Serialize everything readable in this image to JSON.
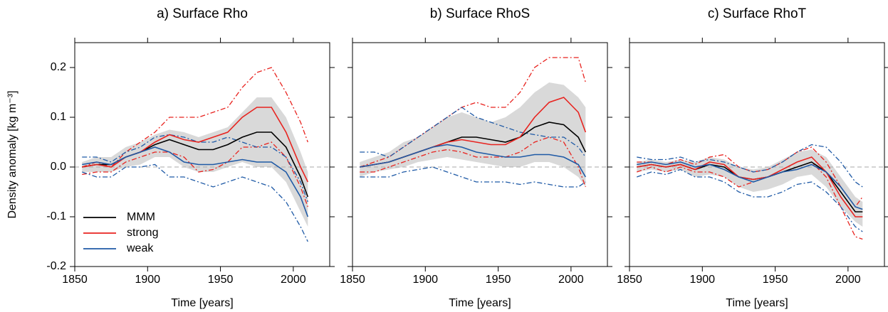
{
  "chart_data": [
    {
      "type": "line",
      "title": "a) Surface Rho",
      "xlabel": "Time [years]",
      "ylabel": "Density anomaly [kg m⁻³]",
      "x": [
        1855,
        1865,
        1875,
        1885,
        1895,
        1905,
        1915,
        1925,
        1935,
        1945,
        1955,
        1965,
        1975,
        1985,
        1995,
        2005,
        2010
      ],
      "xlim": [
        1850,
        2025
      ],
      "xticks": [
        1850,
        1900,
        1950,
        2000
      ],
      "ylim": [
        -0.2,
        0.25
      ],
      "yticks": [
        -0.2,
        -0.1,
        {
          "value": 0,
          "label": "0.0"
        },
        0.1,
        0.2
      ],
      "hline": 0,
      "band": {
        "color": "#d9d9d9",
        "upper": [
          0.01,
          0.02,
          0.02,
          0.04,
          0.05,
          0.065,
          0.075,
          0.07,
          0.06,
          0.07,
          0.08,
          0.11,
          0.14,
          0.14,
          0.1,
          0.03,
          -0.01
        ],
        "lower": [
          -0.01,
          -0.01,
          -0.01,
          0.0,
          0.005,
          0.02,
          0.02,
          0.0,
          -0.01,
          -0.01,
          0.0,
          0.01,
          0.0,
          0.0,
          -0.03,
          -0.09,
          -0.12
        ]
      },
      "series": [
        {
          "name": "MMM",
          "color": "#000000",
          "values": [
            0.0,
            0.005,
            0.005,
            0.02,
            0.03,
            0.045,
            0.055,
            0.045,
            0.035,
            0.035,
            0.045,
            0.06,
            0.07,
            0.07,
            0.04,
            -0.02,
            -0.06
          ]
        },
        {
          "name": "strong",
          "color": "#e8231f",
          "values": [
            0.0,
            0.005,
            0.0,
            0.02,
            0.03,
            0.05,
            0.065,
            0.055,
            0.05,
            0.06,
            0.07,
            0.1,
            0.12,
            0.12,
            0.07,
            0.0,
            -0.03
          ]
        },
        {
          "name": "weak",
          "color": "#1f5aa6",
          "values": [
            0.005,
            0.01,
            0.005,
            0.02,
            0.03,
            0.04,
            0.03,
            0.01,
            0.005,
            0.005,
            0.01,
            0.015,
            0.01,
            0.01,
            -0.01,
            -0.06,
            -0.1
          ]
        },
        {
          "color": "#e8231f",
          "dash": "dash-dot",
          "values": [
            0.0,
            0.01,
            0.0,
            0.03,
            0.05,
            0.07,
            0.1,
            0.1,
            0.1,
            0.11,
            0.12,
            0.16,
            0.19,
            0.2,
            0.15,
            0.09,
            0.05
          ]
        },
        {
          "color": "#e8231f",
          "dash": "dash-dot",
          "values": [
            -0.015,
            -0.01,
            -0.01,
            0.01,
            0.02,
            0.03,
            0.03,
            0.02,
            -0.01,
            -0.005,
            0.01,
            0.04,
            0.04,
            0.05,
            0.02,
            -0.04,
            -0.08
          ]
        },
        {
          "color": "#1f5aa6",
          "dash": "dash-dot",
          "values": [
            0.02,
            0.02,
            0.01,
            0.03,
            0.04,
            0.06,
            0.065,
            0.06,
            0.05,
            0.05,
            0.06,
            0.05,
            0.04,
            0.04,
            0.02,
            -0.03,
            -0.07
          ]
        },
        {
          "color": "#1f5aa6",
          "dash": "dash-dot",
          "values": [
            -0.01,
            -0.02,
            -0.02,
            0.0,
            0.0,
            0.005,
            -0.02,
            -0.02,
            -0.03,
            -0.04,
            -0.03,
            -0.02,
            -0.03,
            -0.04,
            -0.07,
            -0.12,
            -0.15
          ]
        }
      ]
    },
    {
      "type": "line",
      "title": "b) Surface RhoS",
      "xlabel": "Time [years]",
      "x": [
        1855,
        1865,
        1875,
        1885,
        1895,
        1905,
        1915,
        1925,
        1935,
        1945,
        1955,
        1965,
        1975,
        1985,
        1995,
        2005,
        2010
      ],
      "xlim": [
        1850,
        2025
      ],
      "xticks": [
        1850,
        1900,
        1950,
        2000
      ],
      "ylim": [
        -0.2,
        0.25
      ],
      "yticks": [
        -0.2,
        -0.1,
        0,
        0.1,
        0.2
      ],
      "hline": 0,
      "band": {
        "color": "#d9d9d9",
        "upper": [
          0.01,
          0.02,
          0.03,
          0.05,
          0.06,
          0.08,
          0.1,
          0.11,
          0.1,
          0.09,
          0.1,
          0.12,
          0.15,
          0.17,
          0.165,
          0.14,
          0.12
        ],
        "lower": [
          -0.02,
          -0.01,
          -0.005,
          0.0,
          0.01,
          0.015,
          0.02,
          0.015,
          0.01,
          0.005,
          0.0,
          0.0,
          0.01,
          0.01,
          0.0,
          -0.02,
          -0.04
        ]
      },
      "series": [
        {
          "color": "#000000",
          "values": [
            0.0,
            0.005,
            0.01,
            0.02,
            0.03,
            0.04,
            0.05,
            0.06,
            0.06,
            0.055,
            0.05,
            0.06,
            0.08,
            0.09,
            0.085,
            0.06,
            0.03
          ]
        },
        {
          "color": "#e8231f",
          "values": [
            0.0,
            0.005,
            0.01,
            0.02,
            0.03,
            0.04,
            0.05,
            0.055,
            0.05,
            0.045,
            0.045,
            0.06,
            0.1,
            0.13,
            0.14,
            0.11,
            0.07
          ]
        },
        {
          "color": "#1f5aa6",
          "values": [
            0.0,
            0.005,
            0.01,
            0.02,
            0.03,
            0.04,
            0.045,
            0.04,
            0.03,
            0.025,
            0.02,
            0.02,
            0.025,
            0.025,
            0.02,
            0.005,
            -0.02
          ]
        },
        {
          "color": "#e8231f",
          "dash": "dash-dot",
          "values": [
            0.0,
            0.01,
            0.02,
            0.04,
            0.06,
            0.08,
            0.1,
            0.12,
            0.13,
            0.12,
            0.12,
            0.15,
            0.2,
            0.22,
            0.22,
            0.22,
            0.17
          ]
        },
        {
          "color": "#e8231f",
          "dash": "dash-dot",
          "values": [
            -0.01,
            -0.01,
            0.0,
            0.01,
            0.02,
            0.03,
            0.035,
            0.03,
            0.02,
            0.02,
            0.02,
            0.03,
            0.05,
            0.06,
            0.05,
            0.0,
            -0.04
          ]
        },
        {
          "color": "#1f5aa6",
          "dash": "dash-dot",
          "values": [
            0.03,
            0.03,
            0.02,
            0.04,
            0.06,
            0.08,
            0.1,
            0.12,
            0.1,
            0.09,
            0.08,
            0.07,
            0.065,
            0.06,
            0.06,
            0.04,
            0.02
          ]
        },
        {
          "color": "#1f5aa6",
          "dash": "dash-dot",
          "values": [
            -0.02,
            -0.02,
            -0.02,
            -0.01,
            -0.005,
            0.0,
            -0.01,
            -0.02,
            -0.03,
            -0.03,
            -0.03,
            -0.035,
            -0.03,
            -0.035,
            -0.04,
            -0.04,
            -0.03
          ]
        }
      ]
    },
    {
      "type": "line",
      "title": "c) Surface RhoT",
      "xlabel": "Time [years]",
      "x": [
        1855,
        1865,
        1875,
        1885,
        1895,
        1905,
        1915,
        1925,
        1935,
        1945,
        1955,
        1965,
        1975,
        1985,
        1995,
        2005,
        2010
      ],
      "xlim": [
        1850,
        2025
      ],
      "xticks": [
        1850,
        1900,
        1950,
        2000
      ],
      "ylim": [
        -0.2,
        0.25
      ],
      "yticks": [
        -0.2,
        -0.1,
        0,
        0.1,
        0.2
      ],
      "hline": 0,
      "band": {
        "color": "#d9d9d9",
        "upper": [
          0.01,
          0.015,
          0.01,
          0.015,
          0.01,
          0.02,
          0.015,
          0.0,
          -0.005,
          0.0,
          0.015,
          0.03,
          0.035,
          0.02,
          -0.02,
          -0.06,
          -0.07
        ],
        "lower": [
          -0.01,
          -0.005,
          -0.01,
          -0.005,
          -0.02,
          -0.015,
          -0.02,
          -0.04,
          -0.05,
          -0.045,
          -0.035,
          -0.02,
          -0.015,
          -0.04,
          -0.08,
          -0.11,
          -0.12
        ]
      },
      "series": [
        {
          "color": "#000000",
          "values": [
            0.0,
            0.005,
            0.0,
            0.005,
            -0.005,
            0.005,
            0.0,
            -0.02,
            -0.025,
            -0.02,
            -0.01,
            0.0,
            0.01,
            -0.01,
            -0.05,
            -0.09,
            -0.09
          ]
        },
        {
          "color": "#e8231f",
          "values": [
            0.0,
            0.005,
            0.0,
            0.005,
            -0.005,
            0.01,
            0.005,
            -0.02,
            -0.025,
            -0.02,
            -0.005,
            0.01,
            0.02,
            -0.01,
            -0.06,
            -0.1,
            -0.1
          ]
        },
        {
          "color": "#1f5aa6",
          "values": [
            0.005,
            0.01,
            0.005,
            0.01,
            0.0,
            0.005,
            -0.005,
            -0.02,
            -0.03,
            -0.02,
            -0.01,
            -0.005,
            0.005,
            -0.01,
            -0.04,
            -0.08,
            -0.085
          ]
        },
        {
          "color": "#e8231f",
          "dash": "dash-dot",
          "values": [
            0.01,
            0.01,
            0.005,
            0.015,
            0.005,
            0.02,
            0.025,
            0.0,
            -0.01,
            -0.005,
            0.01,
            0.03,
            0.04,
            0.01,
            -0.04,
            -0.08,
            -0.06
          ]
        },
        {
          "color": "#e8231f",
          "dash": "dash-dot",
          "values": [
            -0.01,
            0.0,
            -0.01,
            0.0,
            -0.01,
            -0.01,
            -0.02,
            -0.04,
            -0.03,
            -0.02,
            -0.01,
            0.0,
            0.01,
            -0.02,
            -0.08,
            -0.14,
            -0.145
          ]
        },
        {
          "color": "#1f5aa6",
          "dash": "dash-dot",
          "values": [
            0.02,
            0.015,
            0.015,
            0.02,
            0.01,
            0.015,
            0.01,
            0.0,
            -0.01,
            -0.005,
            0.01,
            0.03,
            0.045,
            0.04,
            0.01,
            -0.03,
            -0.04
          ]
        },
        {
          "color": "#1f5aa6",
          "dash": "dash-dot",
          "values": [
            -0.02,
            -0.01,
            -0.015,
            -0.005,
            -0.02,
            -0.02,
            -0.03,
            -0.05,
            -0.06,
            -0.06,
            -0.05,
            -0.035,
            -0.03,
            -0.05,
            -0.08,
            -0.12,
            -0.13
          ]
        }
      ]
    }
  ]
}
